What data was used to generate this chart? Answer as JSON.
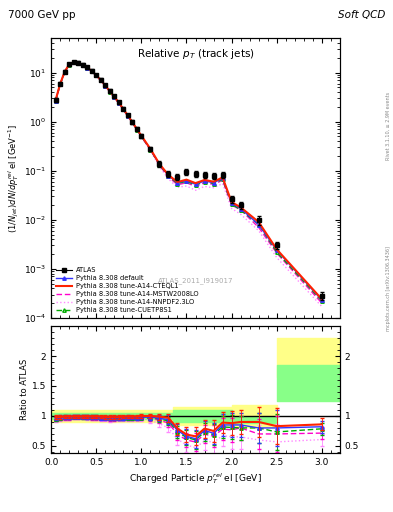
{
  "header_left": "7000 GeV pp",
  "header_right": "Soft QCD",
  "title_main": "Relative $p_{T}$ (track jets)",
  "ylabel_main": "$(1/N_{jet})dN/dp^{rel}_{T}$ el [GeV$^{-1}$]",
  "ylabel_ratio": "Ratio to ATLAS",
  "xlabel": "Charged Particle $p^{rel}_{T}$ el [GeV]",
  "watermark": "ATLAS_2011_I919017",
  "rivet_text": "Rivet 3.1.10, ≥ 2.9M events",
  "mcplots_text": "mcplots.cern.ch [arXiv:1306.3436]",
  "atlas_x": [
    0.05,
    0.1,
    0.15,
    0.2,
    0.25,
    0.3,
    0.35,
    0.4,
    0.45,
    0.5,
    0.55,
    0.6,
    0.65,
    0.7,
    0.75,
    0.8,
    0.85,
    0.9,
    0.95,
    1.0,
    1.1,
    1.2,
    1.3,
    1.4,
    1.5,
    1.6,
    1.7,
    1.8,
    1.9,
    2.0,
    2.1,
    2.3,
    2.5,
    3.0
  ],
  "atlas_y": [
    2.8,
    6.0,
    10.5,
    15.0,
    16.5,
    16.0,
    14.5,
    12.8,
    11.0,
    9.0,
    7.2,
    5.6,
    4.3,
    3.3,
    2.5,
    1.85,
    1.35,
    1.0,
    0.72,
    0.52,
    0.28,
    0.14,
    0.085,
    0.075,
    0.095,
    0.085,
    0.082,
    0.08,
    0.082,
    0.026,
    0.02,
    0.01,
    0.003,
    0.00028
  ],
  "atlas_yerr": [
    0.3,
    0.5,
    0.8,
    1.0,
    1.0,
    1.0,
    0.9,
    0.8,
    0.7,
    0.6,
    0.5,
    0.4,
    0.3,
    0.25,
    0.2,
    0.15,
    0.12,
    0.09,
    0.07,
    0.05,
    0.03,
    0.018,
    0.012,
    0.01,
    0.014,
    0.012,
    0.012,
    0.012,
    0.012,
    0.004,
    0.003,
    0.002,
    0.0005,
    5e-05
  ],
  "py_x": [
    0.05,
    0.1,
    0.15,
    0.2,
    0.25,
    0.3,
    0.35,
    0.4,
    0.45,
    0.5,
    0.55,
    0.6,
    0.65,
    0.7,
    0.75,
    0.8,
    0.85,
    0.9,
    0.95,
    1.0,
    1.1,
    1.2,
    1.3,
    1.4,
    1.5,
    1.6,
    1.7,
    1.8,
    1.9,
    2.0,
    2.1,
    2.3,
    2.5,
    3.0
  ],
  "py_default_y": [
    2.7,
    5.85,
    10.3,
    14.7,
    16.3,
    15.8,
    14.3,
    12.6,
    10.8,
    8.8,
    7.0,
    5.45,
    4.15,
    3.2,
    2.43,
    1.8,
    1.32,
    0.975,
    0.7,
    0.51,
    0.275,
    0.135,
    0.08,
    0.057,
    0.063,
    0.053,
    0.062,
    0.057,
    0.07,
    0.022,
    0.017,
    0.008,
    0.0024,
    0.00023
  ],
  "py_cteql1_y": [
    2.75,
    5.9,
    10.4,
    14.8,
    16.4,
    15.9,
    14.4,
    12.7,
    10.9,
    8.9,
    7.1,
    5.5,
    4.2,
    3.25,
    2.46,
    1.83,
    1.34,
    0.99,
    0.71,
    0.52,
    0.28,
    0.138,
    0.082,
    0.059,
    0.066,
    0.056,
    0.065,
    0.06,
    0.073,
    0.023,
    0.018,
    0.009,
    0.0025,
    0.00024
  ],
  "py_mstw_y": [
    2.65,
    5.75,
    10.2,
    14.6,
    16.2,
    15.7,
    14.2,
    12.5,
    10.7,
    8.7,
    6.9,
    5.38,
    4.08,
    3.15,
    2.39,
    1.77,
    1.3,
    0.957,
    0.688,
    0.5,
    0.268,
    0.13,
    0.075,
    0.052,
    0.057,
    0.048,
    0.057,
    0.053,
    0.064,
    0.02,
    0.016,
    0.007,
    0.0021,
    0.0002
  ],
  "py_nnpdf_y": [
    2.6,
    5.7,
    10.1,
    14.5,
    16.1,
    15.6,
    14.1,
    12.4,
    10.6,
    8.6,
    6.85,
    5.32,
    4.02,
    3.1,
    2.35,
    1.74,
    1.27,
    0.94,
    0.675,
    0.49,
    0.26,
    0.122,
    0.068,
    0.046,
    0.049,
    0.04,
    0.048,
    0.045,
    0.055,
    0.017,
    0.013,
    0.006,
    0.0017,
    0.00017
  ],
  "py_cuetp8s1_y": [
    2.65,
    5.8,
    10.3,
    14.65,
    16.3,
    15.8,
    14.3,
    12.6,
    10.8,
    8.8,
    7.0,
    5.44,
    4.13,
    3.18,
    2.41,
    1.79,
    1.31,
    0.966,
    0.694,
    0.505,
    0.271,
    0.133,
    0.078,
    0.055,
    0.061,
    0.051,
    0.06,
    0.055,
    0.067,
    0.021,
    0.016,
    0.008,
    0.0022,
    0.00022
  ],
  "ratio_default_y": [
    0.96,
    0.98,
    0.98,
    0.98,
    0.99,
    0.99,
    0.99,
    0.98,
    0.98,
    0.98,
    0.97,
    0.97,
    0.97,
    0.97,
    0.97,
    0.97,
    0.98,
    0.975,
    0.972,
    0.98,
    0.98,
    0.96,
    0.94,
    0.76,
    0.66,
    0.62,
    0.76,
    0.71,
    0.85,
    0.85,
    0.85,
    0.8,
    0.8,
    0.82
  ],
  "ratio_cteql1_y": [
    0.98,
    0.98,
    0.99,
    0.99,
    0.99,
    0.99,
    0.99,
    0.99,
    0.99,
    0.99,
    0.99,
    0.98,
    0.98,
    0.98,
    0.98,
    0.99,
    0.99,
    0.99,
    0.99,
    1.0,
    1.0,
    0.99,
    0.97,
    0.79,
    0.69,
    0.66,
    0.79,
    0.75,
    0.89,
    0.88,
    0.9,
    0.9,
    0.83,
    0.86
  ],
  "ratio_mstw_y": [
    0.95,
    0.96,
    0.97,
    0.97,
    0.98,
    0.98,
    0.98,
    0.98,
    0.97,
    0.97,
    0.96,
    0.96,
    0.95,
    0.95,
    0.96,
    0.96,
    0.96,
    0.957,
    0.955,
    0.96,
    0.957,
    0.929,
    0.882,
    0.693,
    0.6,
    0.565,
    0.695,
    0.663,
    0.78,
    0.769,
    0.8,
    0.7,
    0.7,
    0.714
  ],
  "ratio_nnpdf_y": [
    0.93,
    0.95,
    0.96,
    0.97,
    0.98,
    0.975,
    0.972,
    0.968,
    0.964,
    0.956,
    0.951,
    0.95,
    0.935,
    0.939,
    0.94,
    0.941,
    0.941,
    0.94,
    0.938,
    0.942,
    0.929,
    0.871,
    0.8,
    0.614,
    0.516,
    0.471,
    0.585,
    0.563,
    0.671,
    0.654,
    0.65,
    0.6,
    0.567,
    0.607
  ],
  "ratio_cuetp8s1_y": [
    0.946,
    0.967,
    0.981,
    0.977,
    0.988,
    0.988,
    0.986,
    0.984,
    0.982,
    0.978,
    0.972,
    0.971,
    0.961,
    0.964,
    0.964,
    0.968,
    0.97,
    0.966,
    0.964,
    0.971,
    0.968,
    0.95,
    0.918,
    0.733,
    0.642,
    0.6,
    0.732,
    0.688,
    0.817,
    0.808,
    0.8,
    0.8,
    0.733,
    0.786
  ],
  "ratio_default_yerr": [
    0.03,
    0.03,
    0.03,
    0.03,
    0.03,
    0.03,
    0.03,
    0.03,
    0.03,
    0.03,
    0.03,
    0.03,
    0.03,
    0.03,
    0.03,
    0.03,
    0.03,
    0.03,
    0.03,
    0.03,
    0.04,
    0.05,
    0.07,
    0.1,
    0.12,
    0.15,
    0.15,
    0.18,
    0.18,
    0.2,
    0.2,
    0.25,
    0.3,
    0.1
  ],
  "ratio_cteql1_yerr": [
    0.03,
    0.03,
    0.03,
    0.03,
    0.03,
    0.03,
    0.03,
    0.03,
    0.03,
    0.03,
    0.03,
    0.03,
    0.03,
    0.03,
    0.03,
    0.03,
    0.03,
    0.03,
    0.03,
    0.03,
    0.04,
    0.05,
    0.07,
    0.1,
    0.12,
    0.15,
    0.15,
    0.18,
    0.18,
    0.2,
    0.2,
    0.25,
    0.3,
    0.1
  ],
  "ratio_mstw_yerr": [
    0.03,
    0.03,
    0.03,
    0.03,
    0.03,
    0.03,
    0.03,
    0.03,
    0.03,
    0.03,
    0.03,
    0.03,
    0.03,
    0.03,
    0.03,
    0.03,
    0.03,
    0.03,
    0.03,
    0.03,
    0.04,
    0.05,
    0.07,
    0.1,
    0.12,
    0.15,
    0.15,
    0.18,
    0.18,
    0.2,
    0.2,
    0.25,
    0.3,
    0.1
  ],
  "ratio_nnpdf_yerr": [
    0.03,
    0.03,
    0.03,
    0.03,
    0.03,
    0.03,
    0.03,
    0.03,
    0.03,
    0.03,
    0.03,
    0.03,
    0.03,
    0.03,
    0.03,
    0.03,
    0.03,
    0.03,
    0.03,
    0.03,
    0.04,
    0.05,
    0.07,
    0.1,
    0.12,
    0.15,
    0.15,
    0.18,
    0.18,
    0.2,
    0.2,
    0.25,
    0.3,
    0.1
  ],
  "ratio_cuetp8s1_yerr": [
    0.03,
    0.03,
    0.03,
    0.03,
    0.03,
    0.03,
    0.03,
    0.03,
    0.03,
    0.03,
    0.03,
    0.03,
    0.03,
    0.03,
    0.03,
    0.03,
    0.03,
    0.03,
    0.03,
    0.03,
    0.04,
    0.05,
    0.07,
    0.1,
    0.12,
    0.15,
    0.15,
    0.18,
    0.18,
    0.2,
    0.2,
    0.25,
    0.3,
    0.1
  ],
  "xlim": [
    0.0,
    3.2
  ],
  "ylim_main": [
    0.0001,
    50
  ],
  "ylim_ratio": [
    0.38,
    2.5
  ],
  "color_atlas": "#000000",
  "color_default": "#3333ff",
  "color_cteql1": "#ff2200",
  "color_mstw": "#ff00cc",
  "color_nnpdf": "#ff88ff",
  "color_cuetp8s1": "#00aa00",
  "color_yellow_band": "#ffff88",
  "color_green_band": "#88ff88"
}
